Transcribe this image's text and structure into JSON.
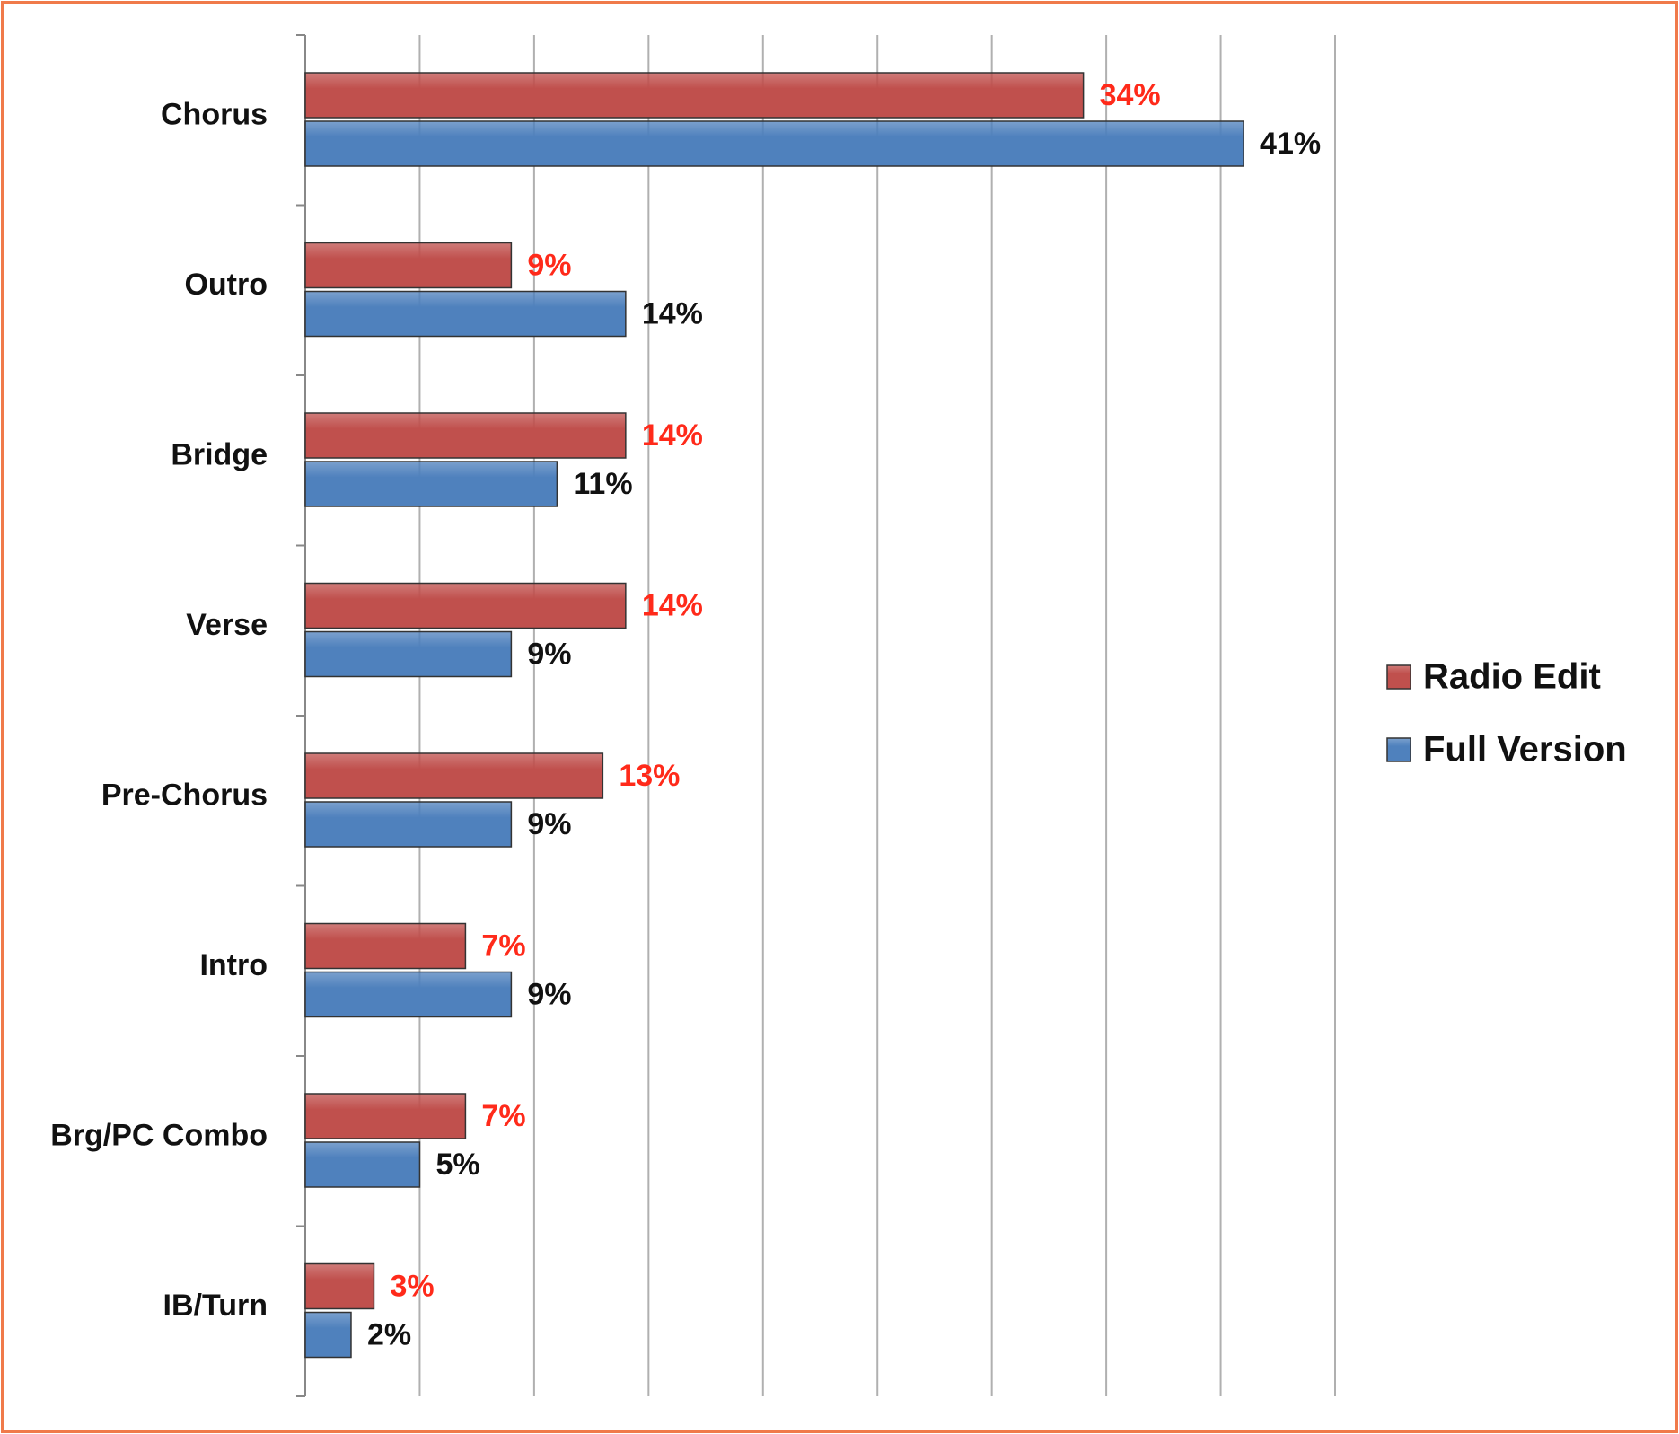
{
  "chart_data": {
    "type": "bar",
    "orientation": "horizontal",
    "categories": [
      "Chorus",
      "Outro",
      "Bridge",
      "Verse",
      "Pre-Chorus",
      "Intro",
      "Brg/PC Combo",
      "IB/Turn"
    ],
    "series": [
      {
        "name": "Radio Edit",
        "color": "#c0504d",
        "label_color": "#ff2a1a",
        "values": [
          34,
          9,
          14,
          14,
          13,
          7,
          7,
          3
        ],
        "value_labels": [
          "34%",
          "9%",
          "14%",
          "14%",
          "13%",
          "7%",
          "7%",
          "3%"
        ]
      },
      {
        "name": "Full Version",
        "color": "#4f81bd",
        "label_color": "#111111",
        "values": [
          41,
          14,
          11,
          9,
          9,
          9,
          5,
          2
        ],
        "value_labels": [
          "41%",
          "14%",
          "11%",
          "9%",
          "9%",
          "9%",
          "5%",
          "2%"
        ]
      }
    ],
    "xlim": [
      0,
      45
    ],
    "xticks": [
      0,
      5,
      10,
      15,
      20,
      25,
      30,
      35,
      40,
      45
    ],
    "grid": true,
    "legend": "right"
  }
}
